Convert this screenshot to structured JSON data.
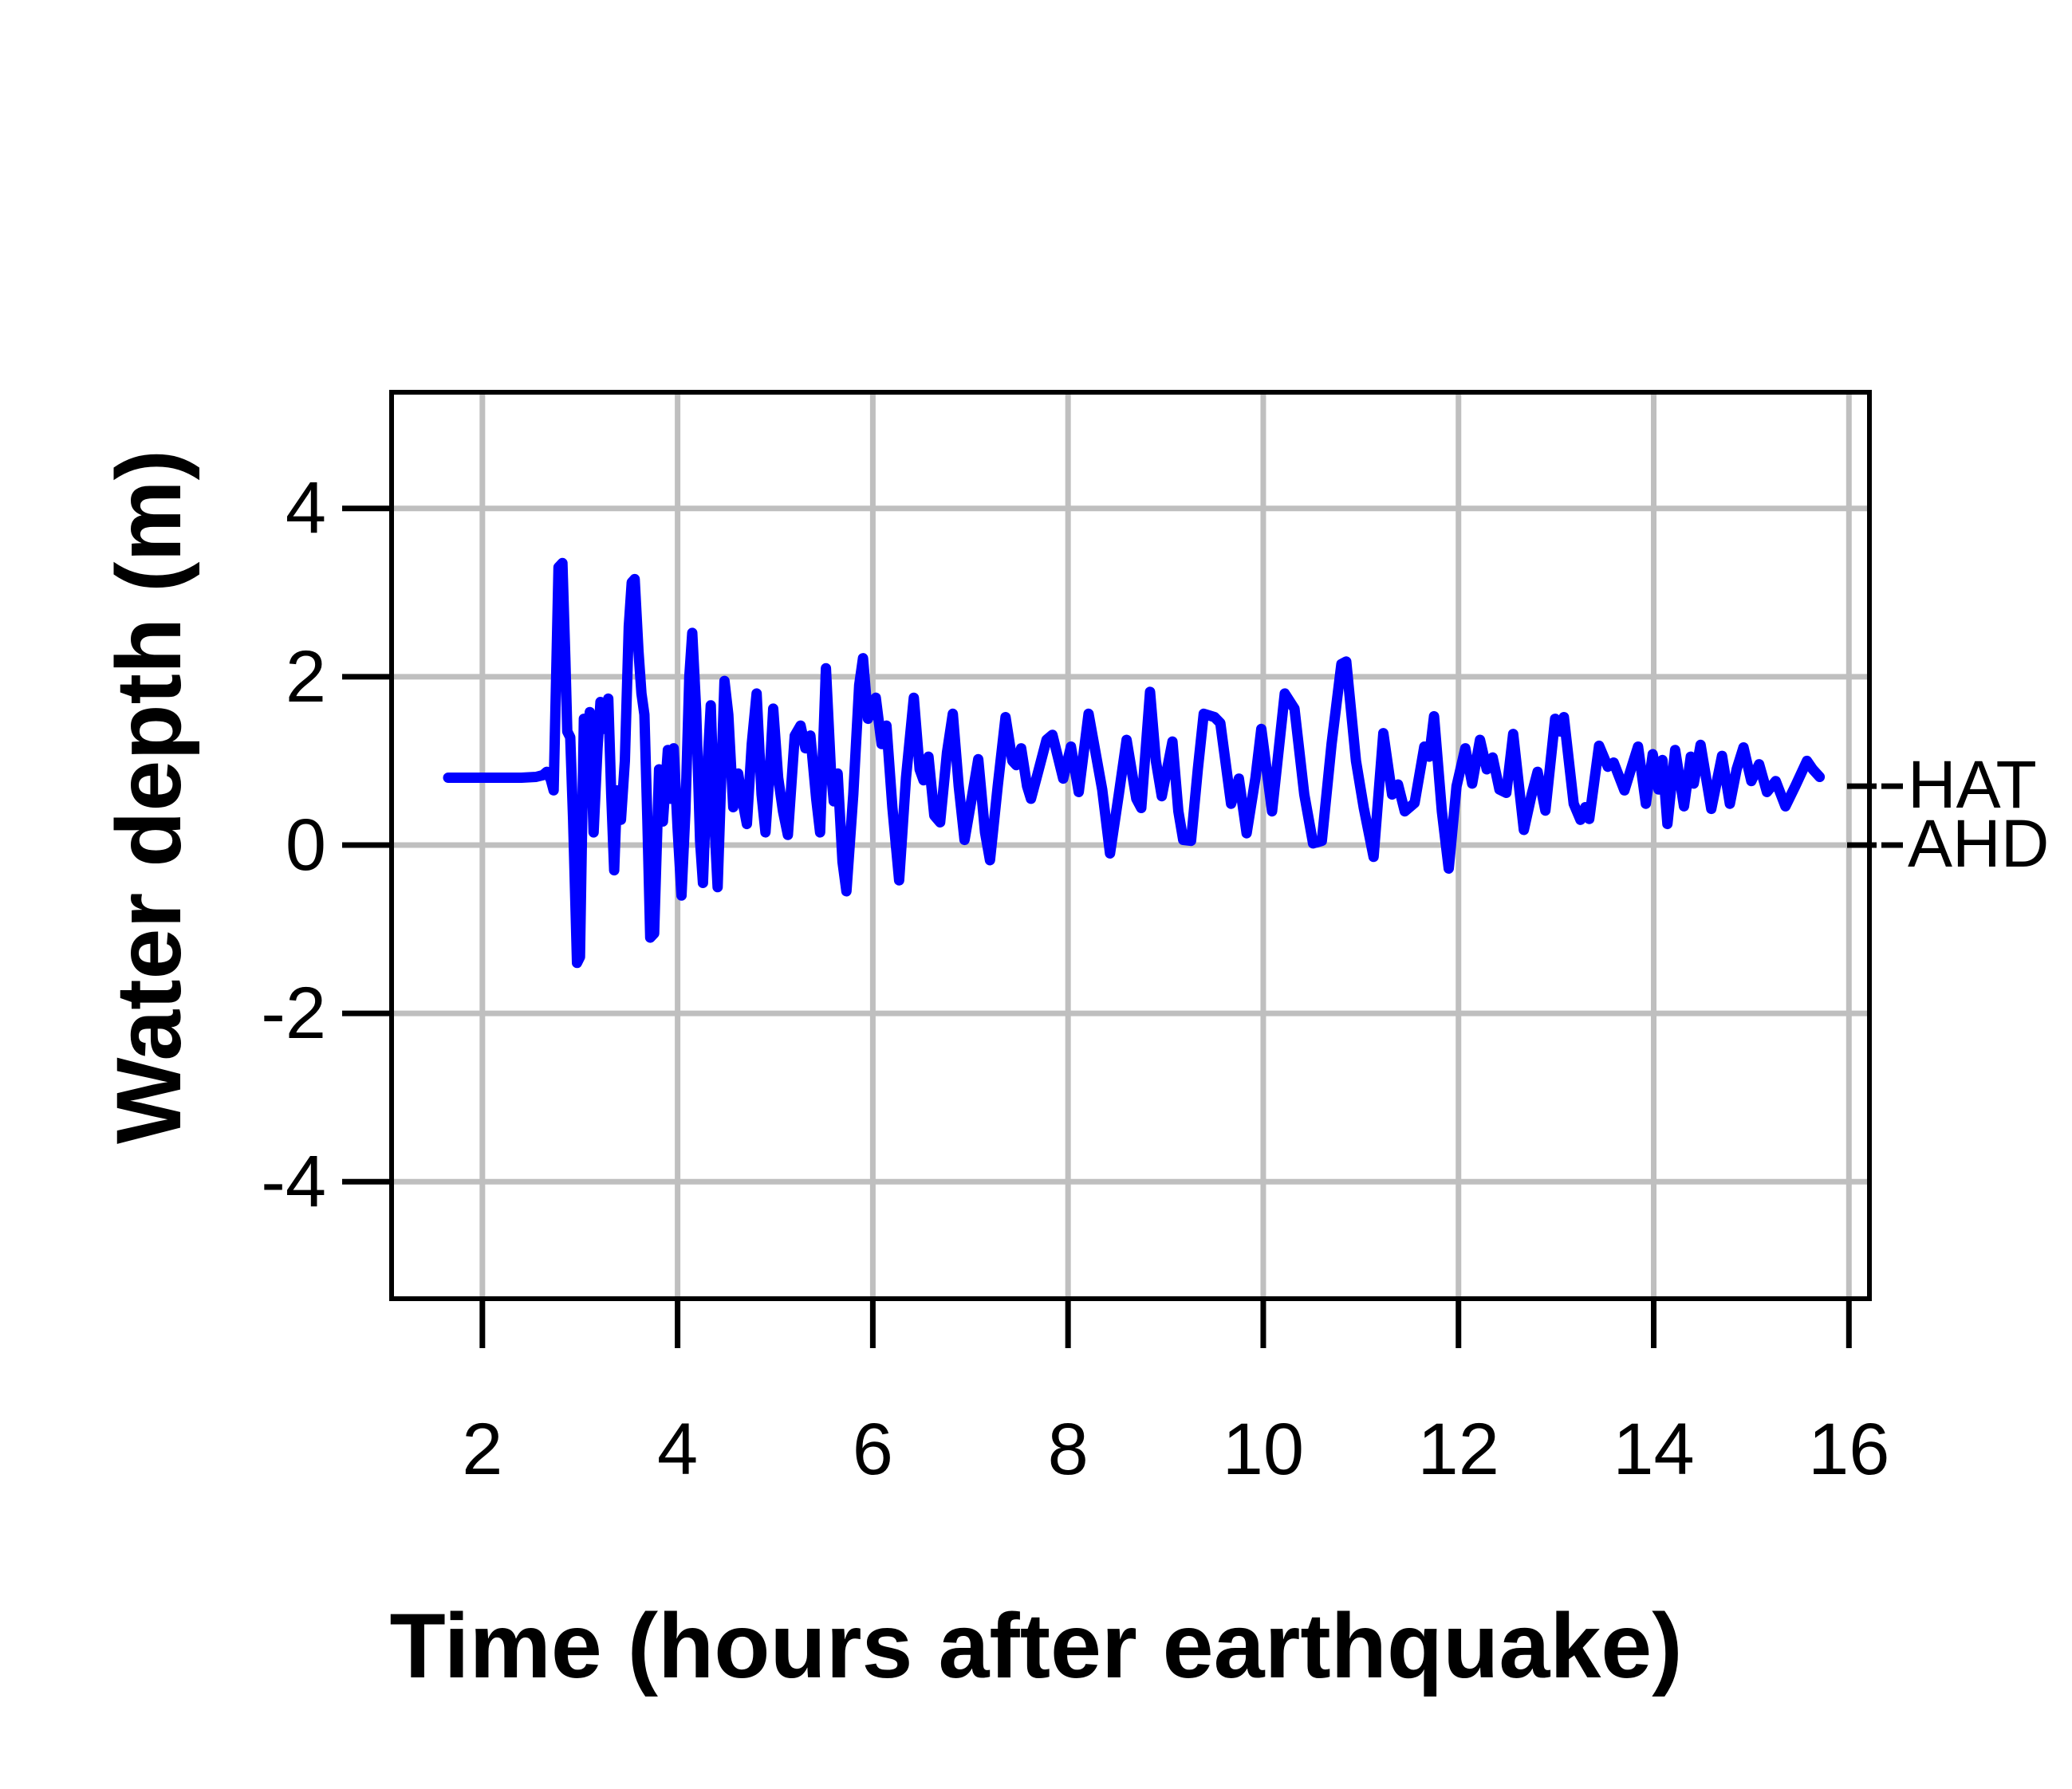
{
  "page": {
    "background": "#ffffff"
  },
  "chart_data": {
    "type": "line",
    "title": "",
    "xlabel": "Time (hours after earthquake)",
    "ylabel": "Water depth (m)",
    "x_ticks": [
      2,
      4,
      6,
      8,
      10,
      12,
      14,
      16
    ],
    "y_ticks": [
      -4,
      -2,
      0,
      2,
      4
    ],
    "xlim": [
      1.07,
      16.21
    ],
    "ylim": [
      -5.39,
      5.38
    ],
    "grid": true,
    "legend_position": "none",
    "colors": {
      "line": "#0000ff",
      "grid": "#bfbfbf",
      "axis": "#000000",
      "background": "#ffffff"
    },
    "annotations": [
      {
        "label": "HAT",
        "value": 0.7
      },
      {
        "label": "AHD",
        "value": 0.0
      }
    ],
    "series": [
      {
        "name": "Water depth",
        "points": [
          [
            1.65,
            0.8
          ],
          [
            1.9,
            0.8
          ],
          [
            2.15,
            0.8
          ],
          [
            2.4,
            0.8
          ],
          [
            2.55,
            0.81
          ],
          [
            2.62,
            0.83
          ],
          [
            2.66,
            0.87
          ],
          [
            2.7,
            0.78
          ],
          [
            2.73,
            0.65
          ],
          [
            2.76,
            2.2
          ],
          [
            2.78,
            3.3
          ],
          [
            2.82,
            3.35
          ],
          [
            2.85,
            2.2
          ],
          [
            2.87,
            1.35
          ],
          [
            2.9,
            1.28
          ],
          [
            2.93,
            0.3
          ],
          [
            2.97,
            -1.4
          ],
          [
            3.0,
            -1.33
          ],
          [
            3.04,
            1.5
          ],
          [
            3.07,
            1.05
          ],
          [
            3.1,
            1.58
          ],
          [
            3.14,
            0.15
          ],
          [
            3.18,
            1.15
          ],
          [
            3.21,
            1.7
          ],
          [
            3.25,
            1.38
          ],
          [
            3.29,
            1.74
          ],
          [
            3.32,
            0.6
          ],
          [
            3.35,
            -0.3
          ],
          [
            3.38,
            0.65
          ],
          [
            3.42,
            0.3
          ],
          [
            3.46,
            1.0
          ],
          [
            3.5,
            2.6
          ],
          [
            3.53,
            3.12
          ],
          [
            3.56,
            3.16
          ],
          [
            3.6,
            2.3
          ],
          [
            3.63,
            1.8
          ],
          [
            3.66,
            1.55
          ],
          [
            3.69,
            0.3
          ],
          [
            3.72,
            -1.1
          ],
          [
            3.76,
            -1.05
          ],
          [
            3.81,
            0.9
          ],
          [
            3.85,
            0.28
          ],
          [
            3.9,
            1.13
          ],
          [
            3.93,
            0.55
          ],
          [
            3.96,
            1.15
          ],
          [
            4.0,
            0.2
          ],
          [
            4.04,
            -0.6
          ],
          [
            4.08,
            0.4
          ],
          [
            4.12,
            2.0
          ],
          [
            4.15,
            2.52
          ],
          [
            4.19,
            1.6
          ],
          [
            4.23,
            0.05
          ],
          [
            4.26,
            -0.45
          ],
          [
            4.3,
            0.8
          ],
          [
            4.34,
            1.66
          ],
          [
            4.38,
            0.2
          ],
          [
            4.41,
            -0.5
          ],
          [
            4.45,
            0.9
          ],
          [
            4.48,
            1.95
          ],
          [
            4.52,
            1.55
          ],
          [
            4.57,
            0.45
          ],
          [
            4.62,
            0.85
          ],
          [
            4.66,
            0.55
          ],
          [
            4.71,
            0.25
          ],
          [
            4.76,
            1.2
          ],
          [
            4.81,
            1.8
          ],
          [
            4.86,
            0.6
          ],
          [
            4.9,
            0.15
          ],
          [
            4.95,
            1.0
          ],
          [
            4.98,
            1.62
          ],
          [
            5.03,
            0.8
          ],
          [
            5.08,
            0.4
          ],
          [
            5.13,
            0.12
          ],
          [
            5.2,
            1.3
          ],
          [
            5.26,
            1.42
          ],
          [
            5.31,
            1.15
          ],
          [
            5.36,
            1.3
          ],
          [
            5.42,
            0.55
          ],
          [
            5.46,
            0.15
          ],
          [
            5.52,
            2.1
          ],
          [
            5.57,
            0.9
          ],
          [
            5.6,
            0.52
          ],
          [
            5.64,
            0.85
          ],
          [
            5.69,
            -0.2
          ],
          [
            5.73,
            -0.55
          ],
          [
            5.8,
            0.6
          ],
          [
            5.86,
            1.9
          ],
          [
            5.9,
            2.22
          ],
          [
            5.95,
            1.5
          ],
          [
            5.99,
            1.6
          ],
          [
            6.03,
            1.75
          ],
          [
            6.09,
            1.2
          ],
          [
            6.14,
            1.42
          ],
          [
            6.2,
            0.45
          ],
          [
            6.27,
            -0.42
          ],
          [
            6.34,
            0.8
          ],
          [
            6.42,
            1.75
          ],
          [
            6.48,
            0.9
          ],
          [
            6.52,
            0.77
          ],
          [
            6.57,
            1.05
          ],
          [
            6.63,
            0.35
          ],
          [
            6.69,
            0.27
          ],
          [
            6.76,
            1.1
          ],
          [
            6.82,
            1.56
          ],
          [
            6.88,
            0.7
          ],
          [
            6.94,
            0.06
          ],
          [
            7.02,
            0.6
          ],
          [
            7.08,
            1.02
          ],
          [
            7.15,
            0.15
          ],
          [
            7.2,
            -0.18
          ],
          [
            7.28,
            0.7
          ],
          [
            7.36,
            1.52
          ],
          [
            7.43,
            1.0
          ],
          [
            7.47,
            0.95
          ],
          [
            7.52,
            1.15
          ],
          [
            7.58,
            0.7
          ],
          [
            7.62,
            0.55
          ],
          [
            7.7,
            0.9
          ],
          [
            7.78,
            1.25
          ],
          [
            7.84,
            1.31
          ],
          [
            7.95,
            0.79
          ],
          [
            8.03,
            1.17
          ],
          [
            8.11,
            0.63
          ],
          [
            8.21,
            1.56
          ],
          [
            8.35,
            0.66
          ],
          [
            8.43,
            -0.1
          ],
          [
            8.52,
            0.6
          ],
          [
            8.6,
            1.25
          ],
          [
            8.7,
            0.55
          ],
          [
            8.75,
            0.44
          ],
          [
            8.84,
            1.82
          ],
          [
            8.9,
            1.0
          ],
          [
            8.96,
            0.58
          ],
          [
            9.07,
            1.23
          ],
          [
            9.13,
            0.4
          ],
          [
            9.18,
            0.06
          ],
          [
            9.26,
            0.05
          ],
          [
            9.33,
            0.9
          ],
          [
            9.39,
            1.56
          ],
          [
            9.5,
            1.52
          ],
          [
            9.56,
            1.45
          ],
          [
            9.67,
            0.49
          ],
          [
            9.75,
            0.79
          ],
          [
            9.83,
            0.14
          ],
          [
            9.92,
            0.8
          ],
          [
            9.98,
            1.38
          ],
          [
            10.09,
            0.4
          ],
          [
            10.22,
            1.8
          ],
          [
            10.32,
            1.62
          ],
          [
            10.42,
            0.6
          ],
          [
            10.51,
            0.02
          ],
          [
            10.6,
            0.05
          ],
          [
            10.7,
            1.2
          ],
          [
            10.8,
            2.15
          ],
          [
            10.85,
            2.18
          ],
          [
            10.95,
            1.0
          ],
          [
            11.03,
            0.44
          ],
          [
            11.13,
            -0.14
          ],
          [
            11.23,
            1.33
          ],
          [
            11.32,
            0.6
          ],
          [
            11.38,
            0.72
          ],
          [
            11.45,
            0.4
          ],
          [
            11.55,
            0.5
          ],
          [
            11.65,
            1.17
          ],
          [
            11.7,
            1.05
          ],
          [
            11.75,
            1.53
          ],
          [
            11.83,
            0.4
          ],
          [
            11.9,
            -0.28
          ],
          [
            11.98,
            0.7
          ],
          [
            12.07,
            1.15
          ],
          [
            12.14,
            0.73
          ],
          [
            12.22,
            1.25
          ],
          [
            12.29,
            0.9
          ],
          [
            12.35,
            1.04
          ],
          [
            12.42,
            0.66
          ],
          [
            12.49,
            0.62
          ],
          [
            12.56,
            1.32
          ],
          [
            12.67,
            0.18
          ],
          [
            12.75,
            0.6
          ],
          [
            12.81,
            0.87
          ],
          [
            12.89,
            0.41
          ],
          [
            12.99,
            1.5
          ],
          [
            13.04,
            1.35
          ],
          [
            13.08,
            1.52
          ],
          [
            13.18,
            0.49
          ],
          [
            13.25,
            0.3
          ],
          [
            13.3,
            0.45
          ],
          [
            13.34,
            0.31
          ],
          [
            13.44,
            1.18
          ],
          [
            13.53,
            0.93
          ],
          [
            13.59,
            0.98
          ],
          [
            13.7,
            0.65
          ],
          [
            13.78,
            0.95
          ],
          [
            13.84,
            1.17
          ],
          [
            13.92,
            0.49
          ],
          [
            13.99,
            1.08
          ],
          [
            14.05,
            0.66
          ],
          [
            14.09,
            1.01
          ],
          [
            14.14,
            0.25
          ],
          [
            14.22,
            1.13
          ],
          [
            14.31,
            0.46
          ],
          [
            14.38,
            1.05
          ],
          [
            14.41,
            0.73
          ],
          [
            14.48,
            1.19
          ],
          [
            14.59,
            0.43
          ],
          [
            14.7,
            1.06
          ],
          [
            14.78,
            0.49
          ],
          [
            14.85,
            0.9
          ],
          [
            14.92,
            1.16
          ],
          [
            15.0,
            0.76
          ],
          [
            15.08,
            0.96
          ],
          [
            15.16,
            0.63
          ],
          [
            15.25,
            0.76
          ],
          [
            15.35,
            0.46
          ],
          [
            15.45,
            0.7
          ],
          [
            15.57,
            1.0
          ],
          [
            15.63,
            0.9
          ],
          [
            15.7,
            0.81
          ]
        ]
      }
    ]
  }
}
